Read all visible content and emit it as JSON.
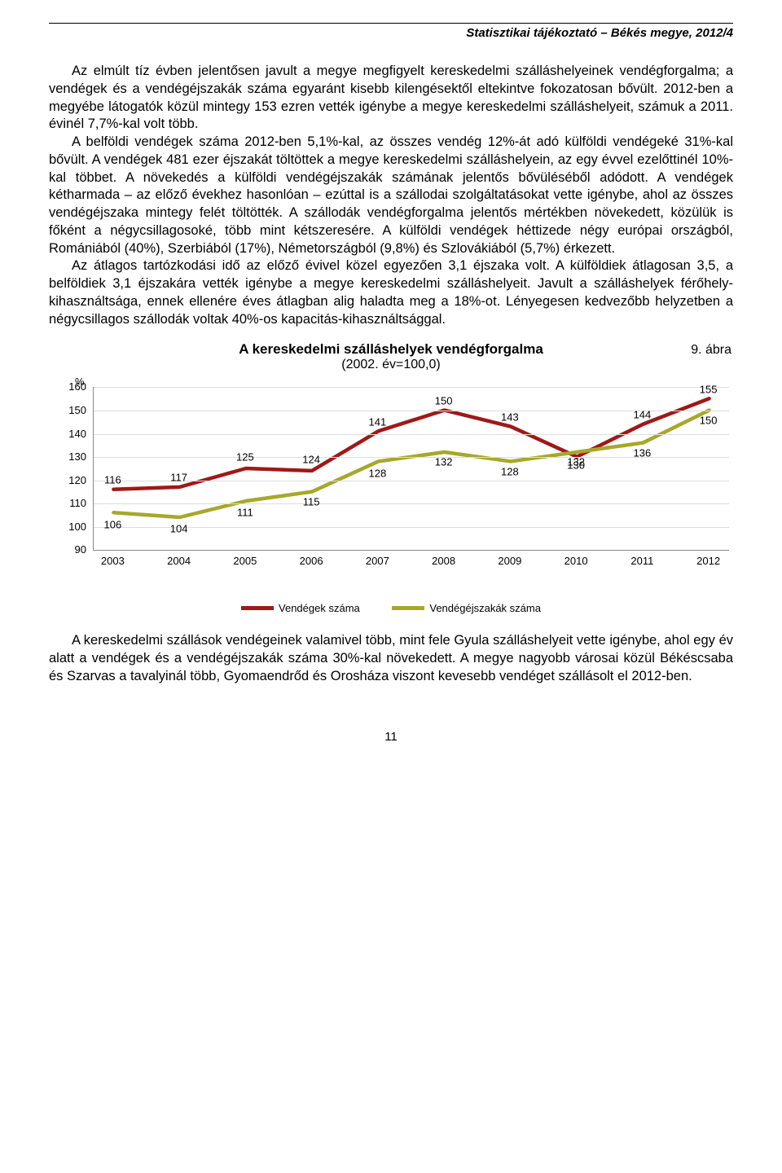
{
  "header": "Statisztikai tájékoztató – Békés megye, 2012/4",
  "paragraphs": {
    "p1": "Az elmúlt tíz évben jelentősen javult a megye megfigyelt kereskedelmi szálláshelyeinek vendégforgalma; a vendégek és a vendégéjszakák száma egyaránt kisebb kilengésektől eltekintve fokozatosan bővült. 2012-ben a megyébe látogatók közül mintegy 153 ezren vették igénybe a megye kereskedelmi szálláshelyeit, számuk a 2011. évinél 7,7%-kal volt több.",
    "p2": "A belföldi vendégek száma 2012-ben 5,1%-kal, az összes vendég 12%-át adó külföldi vendégeké 31%-kal bővült. A vendégek 481 ezer éjszakát töltöttek a megye kereskedelmi szálláshelyein, az egy évvel ezelőttinél 10%-kal többet. A növekedés a külföldi vendégéjszakák számának jelentős bővüléséből adódott. A vendégek kétharmada – az előző évekhez hasonlóan – ezúttal is a szállodai szolgáltatásokat vette igénybe, ahol az összes vendégéjszaka mintegy felét töltötték. A szállodák vendégforgalma jelentős mértékben növekedett, közülük is főként a négycsillagosoké, több mint kétszeresére. A külföldi vendégek héttizede négy európai országból, Romániából (40%), Szerbiából (17%), Németországból (9,8%) és Szlovákiából (5,7%) érkezett.",
    "p3": "Az átlagos tartózkodási idő az előző évivel közel egyezően 3,1 éjszaka volt. A külföldiek átlagosan 3,5, a belföldiek 3,1 éjszakára vették igénybe a megye kereskedelmi szálláshelyeit. Javult a szálláshelyek férőhely-kihasználtsága, ennek ellenére éves átlagban alig haladta meg a 18%-ot. Lényegesen kedvezőbb helyzetben a négycsillagos szállodák voltak 40%-os kapacitás-kihasználtsággal."
  },
  "figure_label": "9. ábra",
  "chart": {
    "type": "line",
    "title": "A kereskedelmi szálláshelyek vendégforgalma",
    "subtitle": "(2002. év=100,0)",
    "y_axis_title": "%",
    "y_min": 90,
    "y_max": 160,
    "y_step": 10,
    "years": [
      "2003",
      "2004",
      "2005",
      "2006",
      "2007",
      "2008",
      "2009",
      "2010",
      "2011",
      "2012"
    ],
    "series": [
      {
        "name": "Vendégek száma",
        "color": "#a01818",
        "values": [
          116,
          117,
          125,
          124,
          141,
          150,
          143,
          130,
          144,
          155
        ],
        "label_dy": [
          -12,
          -12,
          -14,
          -14,
          -12,
          -12,
          -12,
          10,
          -12,
          -12
        ]
      },
      {
        "name": "Vendégéjszakák száma",
        "color": "#a7a82a",
        "values": [
          106,
          104,
          111,
          115,
          128,
          132,
          128,
          132,
          136,
          150
        ],
        "label_dy": [
          14,
          14,
          14,
          12,
          14,
          12,
          12,
          12,
          12,
          12
        ]
      }
    ],
    "line_width": 4.5,
    "grid_color": "#dddddd",
    "axis_color": "#888888",
    "font_size": 13
  },
  "footer_paragraph": "A kereskedelmi szállások vendégeinek valamivel több, mint fele Gyula szálláshelyeit vette igénybe, ahol egy év alatt a vendégek és a vendégéjszakák száma 30%-kal növekedett. A megye nagyobb városai közül Békéscsaba és Szarvas a tavalyi­nál több, Gyomaendrőd és Orosháza viszont kevesebb vendéget szállásolt el 2012-ben.",
  "page_number": "11"
}
